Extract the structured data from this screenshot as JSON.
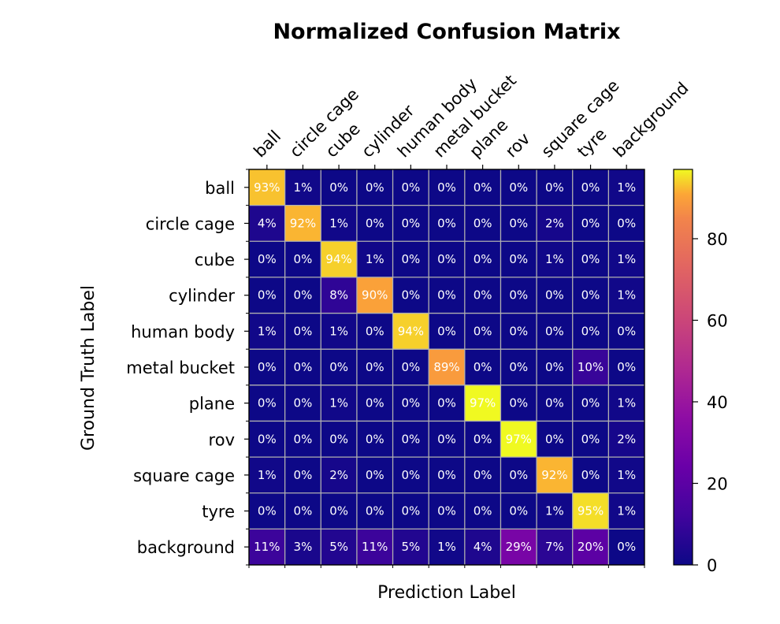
{
  "chart_data": {
    "type": "heatmap",
    "title": "Normalized Confusion Matrix",
    "xlabel": "Prediction Label",
    "ylabel": "Ground Truth Label",
    "x_categories": [
      "ball",
      "circle cage",
      "cube",
      "cylinder",
      "human body",
      "metal bucket",
      "plane",
      "rov",
      "square cage",
      "tyre",
      "background"
    ],
    "y_categories": [
      "ball",
      "circle cage",
      "cube",
      "cylinder",
      "human body",
      "metal bucket",
      "plane",
      "rov",
      "square cage",
      "tyre",
      "background"
    ],
    "values": [
      [
        93,
        1,
        0,
        0,
        0,
        0,
        0,
        0,
        0,
        0,
        1
      ],
      [
        4,
        92,
        1,
        0,
        0,
        0,
        0,
        0,
        2,
        0,
        0
      ],
      [
        0,
        0,
        94,
        1,
        0,
        0,
        0,
        0,
        1,
        0,
        1
      ],
      [
        0,
        0,
        8,
        90,
        0,
        0,
        0,
        0,
        0,
        0,
        1
      ],
      [
        1,
        0,
        1,
        0,
        94,
        0,
        0,
        0,
        0,
        0,
        0
      ],
      [
        0,
        0,
        0,
        0,
        0,
        89,
        0,
        0,
        0,
        10,
        0
      ],
      [
        0,
        0,
        1,
        0,
        0,
        0,
        97,
        0,
        0,
        0,
        1
      ],
      [
        0,
        0,
        0,
        0,
        0,
        0,
        0,
        97,
        0,
        0,
        2
      ],
      [
        1,
        0,
        2,
        0,
        0,
        0,
        0,
        0,
        92,
        0,
        1
      ],
      [
        0,
        0,
        0,
        0,
        0,
        0,
        0,
        0,
        1,
        95,
        1
      ],
      [
        11,
        3,
        5,
        11,
        5,
        1,
        4,
        29,
        7,
        20,
        0
      ]
    ],
    "value_suffix": "%",
    "colormap": "plasma",
    "color_range": [
      0,
      97
    ],
    "colorbar_ticks": [
      0,
      20,
      40,
      60,
      80
    ],
    "grid": true,
    "grid_color": "#b0b0b0"
  }
}
